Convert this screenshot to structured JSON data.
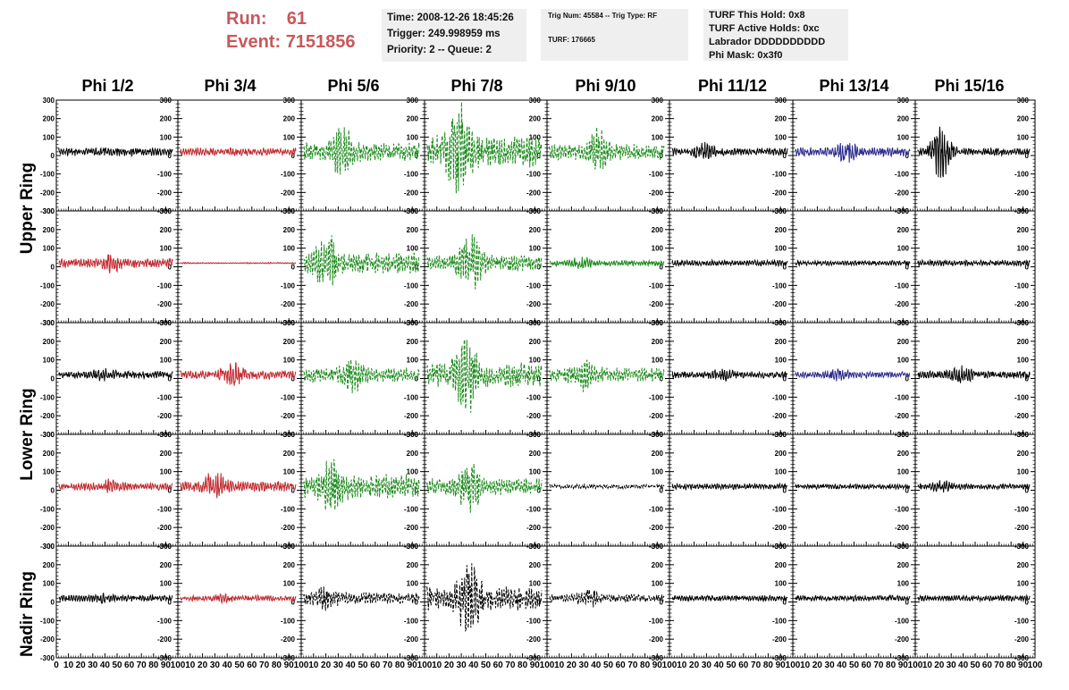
{
  "header": {
    "run_label": "Run:",
    "run_value": "61",
    "event_label": "Event:",
    "event_value": "7151856",
    "time_line": "Time: 2008-12-26 18:45:26",
    "trigger_line": "Trigger: 249.998959 ms",
    "priority_line": "Priority: 2 -- Queue: 2",
    "trig_num_line": "Trig Num: 45584 -- Trig Type: RF",
    "turf_line": "TURF: 176665",
    "turf_hold_line": "TURF This Hold: 0x8",
    "turf_active_line": "TURF Active Holds: 0xc",
    "labrador_line": "Labrador DDDDDDDDDD",
    "phi_mask_line": "Phi Mask: 0x3f0"
  },
  "columns": [
    "Phi 1/2",
    "Phi 3/4",
    "Phi 5/6",
    "Phi 7/8",
    "Phi 9/10",
    "Phi 11/12",
    "Phi 13/14",
    "Phi 15/16"
  ],
  "ring_labels": [
    "Upper Ring",
    "Lower Ring",
    "Nadir Ring"
  ],
  "colors": {
    "black": "#000000",
    "red": "#c0272d",
    "green": "#1a8a1a",
    "blue": "#2a2a8c",
    "run_text": "#c9585a",
    "box_bg": "#efefef"
  },
  "chart_data": {
    "type": "line",
    "rows": 5,
    "cols": 8,
    "xlim": [
      0,
      100
    ],
    "ylim": [
      -300,
      300
    ],
    "x_ticks": [
      0,
      10,
      20,
      30,
      40,
      50,
      60,
      70,
      80,
      90,
      100
    ],
    "y_ticks": [
      -300,
      -200,
      -100,
      0,
      100,
      200,
      300
    ],
    "panels": [
      [
        {
          "color": "black",
          "amp": 20,
          "burst": 0,
          "dash": false
        },
        {
          "color": "red",
          "amp": 20,
          "burst": 0,
          "dash": false
        },
        {
          "color": "green",
          "amp": 45,
          "burst": 100,
          "dash": true
        },
        {
          "color": "green",
          "amp": 80,
          "burst": 200,
          "dash": true
        },
        {
          "color": "green",
          "amp": 40,
          "burst": 80,
          "dash": true
        },
        {
          "color": "black",
          "amp": 18,
          "burst": 30,
          "dash": false
        },
        {
          "color": "blue",
          "amp": 22,
          "burst": 40,
          "dash": false
        },
        {
          "color": "black",
          "amp": 18,
          "burst": 130,
          "dash": false
        }
      ],
      [
        {
          "color": "red",
          "amp": 22,
          "burst": 30,
          "dash": false
        },
        {
          "color": "red",
          "amp": 3,
          "burst": 0,
          "dash": false
        },
        {
          "color": "green",
          "amp": 50,
          "burst": 120,
          "dash": true
        },
        {
          "color": "green",
          "amp": 40,
          "burst": 120,
          "dash": true
        },
        {
          "color": "green",
          "amp": 14,
          "burst": 20,
          "dash": false
        },
        {
          "color": "black",
          "amp": 14,
          "burst": 0,
          "dash": false
        },
        {
          "color": "black",
          "amp": 12,
          "burst": 0,
          "dash": false
        },
        {
          "color": "black",
          "amp": 14,
          "burst": 0,
          "dash": false
        }
      ],
      [
        {
          "color": "black",
          "amp": 18,
          "burst": 20,
          "dash": false
        },
        {
          "color": "red",
          "amp": 22,
          "burst": 40,
          "dash": false
        },
        {
          "color": "green",
          "amp": 35,
          "burst": 60,
          "dash": true
        },
        {
          "color": "green",
          "amp": 60,
          "burst": 180,
          "dash": true
        },
        {
          "color": "green",
          "amp": 35,
          "burst": 50,
          "dash": true
        },
        {
          "color": "black",
          "amp": 16,
          "burst": 20,
          "dash": false
        },
        {
          "color": "blue",
          "amp": 16,
          "burst": 20,
          "dash": false
        },
        {
          "color": "black",
          "amp": 18,
          "burst": 30,
          "dash": false
        }
      ],
      [
        {
          "color": "red",
          "amp": 18,
          "burst": 20,
          "dash": false
        },
        {
          "color": "red",
          "amp": 25,
          "burst": 60,
          "dash": false
        },
        {
          "color": "green",
          "amp": 60,
          "burst": 100,
          "dash": true
        },
        {
          "color": "green",
          "amp": 40,
          "burst": 100,
          "dash": true
        },
        {
          "color": "black",
          "amp": 10,
          "burst": 0,
          "dash": true
        },
        {
          "color": "black",
          "amp": 14,
          "burst": 0,
          "dash": false
        },
        {
          "color": "black",
          "amp": 12,
          "burst": 0,
          "dash": false
        },
        {
          "color": "black",
          "amp": 14,
          "burst": 20,
          "dash": false
        }
      ],
      [
        {
          "color": "black",
          "amp": 16,
          "burst": 10,
          "dash": false
        },
        {
          "color": "red",
          "amp": 14,
          "burst": 10,
          "dash": false
        },
        {
          "color": "black",
          "amp": 28,
          "burst": 50,
          "dash": true
        },
        {
          "color": "black",
          "amp": 60,
          "burst": 140,
          "dash": true
        },
        {
          "color": "black",
          "amp": 20,
          "burst": 30,
          "dash": true
        },
        {
          "color": "black",
          "amp": 14,
          "burst": 0,
          "dash": false
        },
        {
          "color": "black",
          "amp": 14,
          "burst": 0,
          "dash": false
        },
        {
          "color": "black",
          "amp": 14,
          "burst": 0,
          "dash": false
        }
      ]
    ]
  }
}
